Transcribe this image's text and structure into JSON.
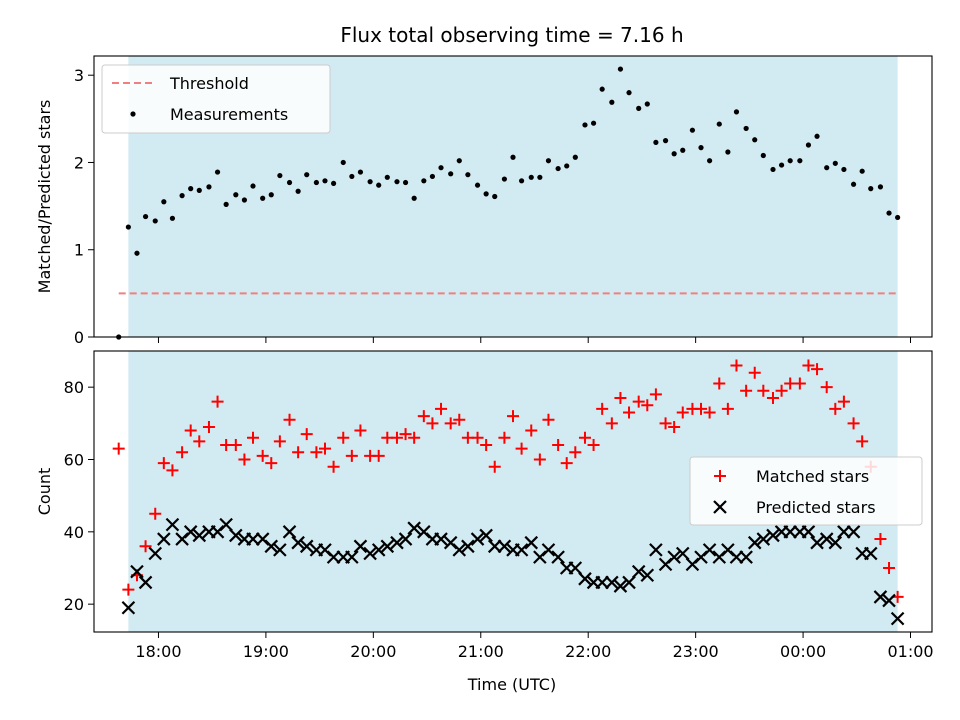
{
  "figure": {
    "title": "Flux total observing time = 7.16 h",
    "xlabel": "Time (UTC)",
    "band_color": "#add8e6",
    "x_tick_labels": [
      "18:00",
      "19:00",
      "20:00",
      "21:00",
      "22:00",
      "23:00",
      "00:00",
      "01:00"
    ]
  },
  "chart_data": [
    {
      "type": "scatter",
      "title": "Flux total observing time = 7.16 h",
      "xlabel": "",
      "ylabel": "Matched/Predicted stars",
      "x_unit": "hours since 00:00 UTC (values >24 are after midnight)",
      "ylim": [
        0,
        3.22
      ],
      "y_ticks": [
        0,
        1,
        2,
        3
      ],
      "legend_position": "upper left",
      "observing_window_hours": [
        17.72,
        24.88
      ],
      "series": [
        {
          "name": "Threshold",
          "kind": "line",
          "style": "dashed",
          "color": "#f08080",
          "x": [
            17.63,
            24.88
          ],
          "y": [
            0.5,
            0.5
          ]
        },
        {
          "name": "Measurements",
          "kind": "scatter",
          "color": "#000000",
          "x": [
            17.63,
            17.72,
            17.8,
            17.88,
            17.97,
            18.05,
            18.13,
            18.22,
            18.3,
            18.38,
            18.47,
            18.55,
            18.63,
            18.72,
            18.8,
            18.88,
            18.97,
            19.05,
            19.13,
            19.22,
            19.3,
            19.38,
            19.47,
            19.55,
            19.63,
            19.72,
            19.8,
            19.88,
            19.97,
            20.05,
            20.13,
            20.22,
            20.3,
            20.38,
            20.47,
            20.55,
            20.63,
            20.72,
            20.8,
            20.88,
            20.97,
            21.05,
            21.13,
            21.22,
            21.3,
            21.38,
            21.47,
            21.55,
            21.63,
            21.72,
            21.8,
            21.88,
            21.97,
            22.05,
            22.13,
            22.22,
            22.3,
            22.38,
            22.47,
            22.55,
            22.63,
            22.72,
            22.8,
            22.88,
            22.97,
            23.05,
            23.13,
            23.22,
            23.3,
            23.38,
            23.47,
            23.55,
            23.63,
            23.72,
            23.8,
            23.88,
            23.97,
            24.05,
            24.13,
            24.22,
            24.3,
            24.38,
            24.47,
            24.55,
            24.63,
            24.72,
            24.8,
            24.88
          ],
          "y": [
            0.0,
            1.26,
            0.96,
            1.38,
            1.33,
            1.55,
            1.36,
            1.62,
            1.7,
            1.68,
            1.72,
            1.89,
            1.52,
            1.63,
            1.57,
            1.73,
            1.59,
            1.63,
            1.85,
            1.77,
            1.67,
            1.86,
            1.77,
            1.79,
            1.76,
            2.0,
            1.84,
            1.89,
            1.78,
            1.74,
            1.83,
            1.78,
            1.77,
            1.59,
            1.79,
            1.84,
            1.94,
            1.87,
            2.02,
            1.86,
            1.74,
            1.64,
            1.61,
            1.81,
            2.06,
            1.79,
            1.83,
            1.83,
            2.02,
            1.93,
            1.96,
            2.06,
            2.43,
            2.45,
            2.84,
            2.69,
            3.07,
            2.8,
            2.62,
            2.67,
            2.23,
            2.25,
            2.1,
            2.14,
            2.37,
            2.17,
            2.02,
            2.44,
            2.12,
            2.58,
            2.39,
            2.26,
            2.08,
            1.92,
            1.97,
            2.02,
            2.02,
            2.2,
            2.3,
            1.94,
            1.99,
            1.92,
            1.75,
            1.9,
            1.7,
            1.72,
            1.42,
            1.37
          ]
        }
      ]
    },
    {
      "type": "scatter",
      "title": "",
      "xlabel": "Time (UTC)",
      "ylabel": "Count",
      "x_unit": "hours since 00:00 UTC (values >24 are after midnight)",
      "ylim": [
        12.3,
        90
      ],
      "y_ticks": [
        20,
        40,
        60,
        80
      ],
      "legend_position": "center right",
      "observing_window_hours": [
        17.72,
        24.88
      ],
      "series": [
        {
          "name": "Matched stars",
          "kind": "plus",
          "color": "#ff0000",
          "x": [
            17.63,
            17.72,
            17.8,
            17.88,
            17.97,
            18.05,
            18.13,
            18.22,
            18.3,
            18.38,
            18.47,
            18.55,
            18.63,
            18.72,
            18.8,
            18.88,
            18.97,
            19.05,
            19.13,
            19.22,
            19.3,
            19.38,
            19.47,
            19.55,
            19.63,
            19.72,
            19.8,
            19.88,
            19.97,
            20.05,
            20.13,
            20.22,
            20.3,
            20.38,
            20.47,
            20.55,
            20.63,
            20.72,
            20.8,
            20.88,
            20.97,
            21.05,
            21.13,
            21.22,
            21.3,
            21.38,
            21.47,
            21.55,
            21.63,
            21.72,
            21.8,
            21.88,
            21.97,
            22.05,
            22.13,
            22.22,
            22.3,
            22.38,
            22.47,
            22.55,
            22.63,
            22.72,
            22.8,
            22.88,
            22.97,
            23.05,
            23.13,
            23.22,
            23.3,
            23.38,
            23.47,
            23.55,
            23.63,
            23.72,
            23.8,
            23.88,
            23.97,
            24.05,
            24.13,
            24.22,
            24.3,
            24.38,
            24.47,
            24.55,
            24.63,
            24.72,
            24.8,
            24.88
          ],
          "y": [
            63,
            24,
            28,
            36,
            45,
            59,
            57,
            62,
            68,
            65,
            69,
            76,
            64,
            64,
            60,
            66,
            61,
            59,
            65,
            71,
            62,
            67,
            62,
            63,
            58,
            66,
            61,
            68,
            61,
            61,
            66,
            66,
            67,
            66,
            72,
            70,
            74,
            70,
            71,
            66,
            66,
            64,
            58,
            66,
            72,
            63,
            68,
            60,
            71,
            64,
            59,
            62,
            66,
            64,
            74,
            70,
            77,
            73,
            76,
            75,
            78,
            70,
            69,
            73,
            74,
            74,
            73,
            81,
            74,
            86,
            79,
            84,
            79,
            77,
            79,
            81,
            81,
            86,
            85,
            80,
            74,
            76,
            70,
            65,
            58,
            38,
            30,
            22
          ]
        },
        {
          "name": "Predicted stars",
          "kind": "x",
          "color": "#000000",
          "x": [
            17.63,
            17.72,
            17.8,
            17.88,
            17.97,
            18.05,
            18.13,
            18.22,
            18.3,
            18.38,
            18.47,
            18.55,
            18.63,
            18.72,
            18.8,
            18.88,
            18.97,
            19.05,
            19.13,
            19.22,
            19.3,
            19.38,
            19.47,
            19.55,
            19.63,
            19.72,
            19.8,
            19.88,
            19.97,
            20.05,
            20.13,
            20.22,
            20.3,
            20.38,
            20.47,
            20.55,
            20.63,
            20.72,
            20.8,
            20.88,
            20.97,
            21.05,
            21.13,
            21.22,
            21.3,
            21.38,
            21.47,
            21.55,
            21.63,
            21.72,
            21.8,
            21.88,
            21.97,
            22.05,
            22.13,
            22.22,
            22.3,
            22.38,
            22.47,
            22.55,
            22.63,
            22.72,
            22.8,
            22.88,
            22.97,
            23.05,
            23.13,
            23.22,
            23.3,
            23.38,
            23.47,
            23.55,
            23.63,
            23.72,
            23.8,
            23.88,
            23.97,
            24.05,
            24.13,
            24.22,
            24.3,
            24.38,
            24.47,
            24.55,
            24.63,
            24.72,
            24.8,
            24.88
          ],
          "y": [
            null,
            19,
            29,
            26,
            34,
            38,
            42,
            38,
            40,
            39,
            40,
            40,
            42,
            39,
            38,
            38,
            38,
            36,
            35,
            40,
            37,
            36,
            35,
            35,
            33,
            33,
            33,
            36,
            34,
            35,
            36,
            37,
            38,
            41,
            40,
            38,
            38,
            37,
            35,
            36,
            38,
            39,
            36,
            36,
            35,
            35,
            37,
            33,
            35,
            33,
            30,
            30,
            27,
            26,
            26,
            26,
            25,
            26,
            29,
            28,
            35,
            31,
            33,
            34,
            31,
            33,
            35,
            33,
            35,
            33,
            33,
            37,
            38,
            39,
            40,
            40,
            40,
            40,
            37,
            38,
            37,
            40,
            40,
            34,
            34,
            22,
            21,
            16
          ]
        }
      ]
    }
  ]
}
